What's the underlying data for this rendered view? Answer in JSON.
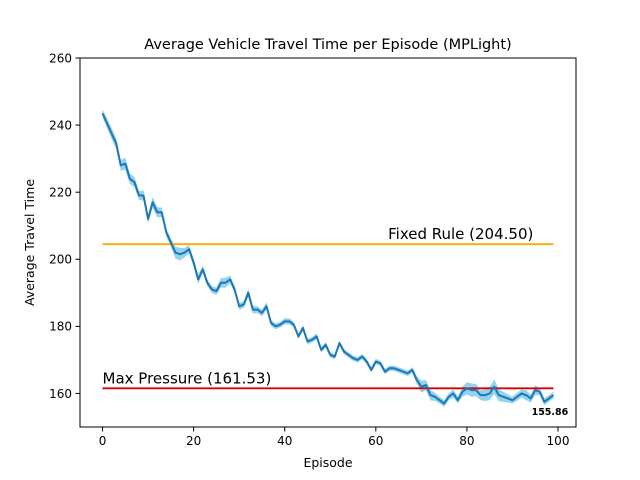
{
  "chart_data": {
    "type": "line",
    "title": "Average Vehicle Travel Time per Episode (MPLight)",
    "xlabel": "Episode",
    "ylabel": "Average Travel Time",
    "xlim": [
      -4.95,
      103.95
    ],
    "ylim": [
      150,
      260
    ],
    "xticks": [
      0,
      20,
      40,
      60,
      80,
      100
    ],
    "xtick_labels": [
      "0",
      "20",
      "40",
      "60",
      "80",
      "100"
    ],
    "yticks": [
      160,
      180,
      200,
      220,
      240,
      260
    ],
    "ytick_labels": [
      "160",
      "180",
      "200",
      "220",
      "240",
      "260"
    ],
    "grid": false,
    "colors": {
      "line": "#1f77b4",
      "band": "#87ceeb",
      "fixed_rule": "#ffa500",
      "max_pressure": "#dd0000"
    },
    "series": [
      {
        "name": "MPLight",
        "x": [
          0,
          1,
          2,
          3,
          4,
          5,
          6,
          7,
          8,
          9,
          10,
          11,
          12,
          13,
          14,
          15,
          16,
          17,
          18,
          19,
          20,
          21,
          22,
          23,
          24,
          25,
          26,
          27,
          28,
          29,
          30,
          31,
          32,
          33,
          34,
          35,
          36,
          37,
          38,
          39,
          40,
          41,
          42,
          43,
          44,
          45,
          46,
          47,
          48,
          49,
          50,
          51,
          52,
          53,
          54,
          55,
          56,
          57,
          58,
          59,
          60,
          61,
          62,
          63,
          64,
          65,
          66,
          67,
          68,
          69,
          70,
          71,
          72,
          73,
          74,
          75,
          76,
          77,
          78,
          79,
          80,
          81,
          82,
          83,
          84,
          85,
          86,
          87,
          88,
          89,
          90,
          91,
          92,
          93,
          94,
          95,
          96,
          97,
          98,
          99
        ],
        "values": [
          243.5,
          240.5,
          237.5,
          234.5,
          228,
          228.5,
          224,
          223,
          219,
          219,
          212,
          217,
          214,
          214,
          208,
          205,
          202,
          201.5,
          202,
          203,
          199,
          194,
          197,
          193,
          191,
          190.5,
          193,
          193,
          194,
          191,
          186,
          186.5,
          190,
          185,
          185,
          184,
          186,
          181,
          180,
          180.5,
          181.5,
          181.5,
          180.5,
          177,
          179.5,
          175.5,
          176,
          177,
          173,
          174.5,
          171.5,
          171,
          175,
          172.5,
          171.5,
          170.5,
          170,
          171,
          169.5,
          167,
          169.5,
          169,
          166.5,
          167.5,
          167.5,
          167,
          166.5,
          166,
          167,
          164,
          162,
          162.5,
          159.5,
          159,
          158,
          157,
          159,
          160,
          158,
          160.5,
          161.5,
          161,
          161,
          159.5,
          159.5,
          160,
          162,
          159.5,
          159,
          158.5,
          158,
          159,
          160,
          159.5,
          158.5,
          161,
          160.5,
          157.5,
          158.5,
          159.5
        ],
        "band_half_width": [
          1.2,
          1.5,
          1.6,
          1.5,
          1.6,
          1.8,
          1.6,
          1.5,
          1.3,
          1.5,
          1.2,
          1.6,
          1.5,
          1.4,
          1.2,
          1.2,
          1.8,
          1.9,
          1.4,
          1.2,
          1.2,
          1.3,
          1.1,
          1.0,
          1.0,
          1.1,
          1.4,
          1.5,
          1.2,
          1.0,
          1.0,
          1.0,
          1.2,
          1.2,
          1.0,
          1.0,
          1.1,
          0.9,
          0.9,
          0.8,
          0.9,
          0.9,
          0.8,
          0.8,
          0.9,
          0.8,
          0.8,
          0.9,
          0.8,
          0.9,
          0.8,
          0.8,
          0.8,
          0.8,
          0.8,
          0.8,
          0.8,
          0.8,
          0.8,
          0.8,
          0.8,
          0.8,
          0.8,
          0.8,
          0.8,
          0.8,
          0.8,
          0.8,
          0.8,
          1.2,
          1.8,
          1.5,
          1.6,
          1.2,
          1.0,
          1.0,
          1.0,
          1.2,
          1.0,
          1.5,
          1.8,
          2.0,
          1.8,
          1.5,
          1.8,
          2.0,
          2.2,
          1.8,
          1.5,
          1.2,
          1.0,
          1.2,
          1.2,
          1.5,
          1.2,
          1.5,
          1.0,
          1.0,
          1.0,
          1.0
        ]
      }
    ],
    "reference_lines": [
      {
        "name": "Fixed Rule",
        "y": 204.5,
        "x_range": [
          0,
          99
        ],
        "label": "Fixed Rule (204.50)",
        "label_x": 62.7
      },
      {
        "name": "Max Pressure",
        "y": 161.53,
        "x_range": [
          0,
          99
        ],
        "label": "Max Pressure (161.53)",
        "label_x": 0
      }
    ],
    "annotations": [
      {
        "text": "155.86",
        "x": 94.2,
        "y": 154.8
      }
    ]
  }
}
